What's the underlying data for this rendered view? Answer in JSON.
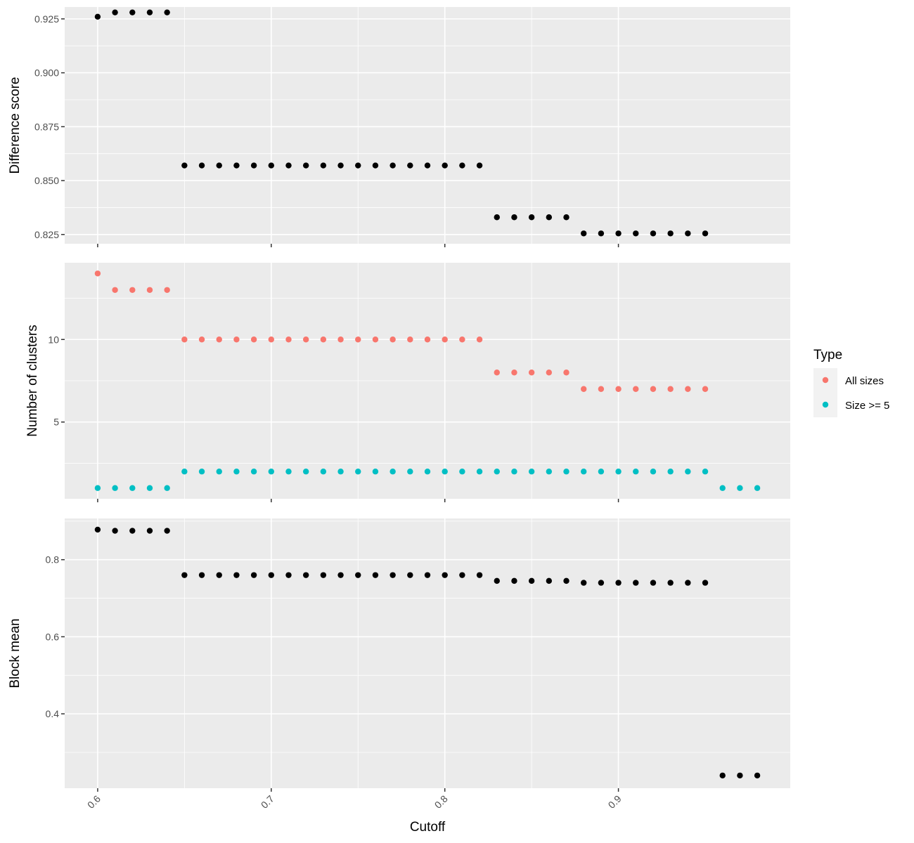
{
  "chart_data": {
    "type": "scatter",
    "xlabel": "Cutoff",
    "x_ticks": [
      0.6,
      0.7,
      0.8,
      0.9
    ],
    "xlim": [
      0.581,
      0.999
    ],
    "x": [
      0.6,
      0.61,
      0.62,
      0.63,
      0.64,
      0.65,
      0.66,
      0.67,
      0.68,
      0.69,
      0.7,
      0.71,
      0.72,
      0.73,
      0.74,
      0.75,
      0.76,
      0.77,
      0.78,
      0.79,
      0.8,
      0.81,
      0.82,
      0.83,
      0.84,
      0.85,
      0.86,
      0.87,
      0.88,
      0.89,
      0.9,
      0.91,
      0.92,
      0.93,
      0.94,
      0.95,
      0.96,
      0.97,
      0.98
    ],
    "grid": true,
    "legend": {
      "title": "Type",
      "position": "right",
      "entries": [
        {
          "label": "All sizes",
          "color": "#F8766D"
        },
        {
          "label": "Size >= 5",
          "color": "#00BFC4"
        }
      ]
    },
    "panels": [
      {
        "ylabel": "Difference score",
        "ylim": [
          0.8207,
          0.9305
        ],
        "y_ticks": [
          0.825,
          0.85,
          0.875,
          0.9,
          0.925
        ],
        "y_tick_labels": [
          "0.825",
          "0.850",
          "0.875",
          "0.900",
          "0.925"
        ],
        "series": [
          {
            "color": "#000000",
            "values": [
              0.926,
              0.928,
              0.928,
              0.928,
              0.928,
              0.857,
              0.857,
              0.857,
              0.857,
              0.857,
              0.857,
              0.857,
              0.857,
              0.857,
              0.857,
              0.857,
              0.857,
              0.857,
              0.857,
              0.857,
              0.857,
              0.857,
              0.857,
              0.833,
              0.833,
              0.833,
              0.833,
              0.833,
              0.8255,
              0.8255,
              0.8255,
              0.8255,
              0.8255,
              0.8255,
              0.8255,
              0.8255,
              null,
              null,
              null
            ]
          }
        ]
      },
      {
        "ylabel": "Number of clusters",
        "ylim": [
          0.35,
          14.65
        ],
        "y_ticks": [
          5,
          10
        ],
        "y_tick_labels": [
          "5",
          "10"
        ],
        "series": [
          {
            "name": "All sizes",
            "color": "#F8766D",
            "values": [
              14,
              13,
              13,
              13,
              13,
              10,
              10,
              10,
              10,
              10,
              10,
              10,
              10,
              10,
              10,
              10,
              10,
              10,
              10,
              10,
              10,
              10,
              10,
              8,
              8,
              8,
              8,
              8,
              7,
              7,
              7,
              7,
              7,
              7,
              7,
              7,
              null,
              null,
              null
            ]
          },
          {
            "name": "Size >= 5",
            "color": "#00BFC4",
            "values": [
              1,
              1,
              1,
              1,
              1,
              2,
              2,
              2,
              2,
              2,
              2,
              2,
              2,
              2,
              2,
              2,
              2,
              2,
              2,
              2,
              2,
              2,
              2,
              2,
              2,
              2,
              2,
              2,
              2,
              2,
              2,
              2,
              2,
              2,
              2,
              2,
              1,
              1,
              1
            ]
          }
        ]
      },
      {
        "ylabel": "Block mean",
        "ylim": [
          0.207,
          0.907
        ],
        "y_ticks": [
          0.4,
          0.6,
          0.8
        ],
        "y_tick_labels": [
          "0.4",
          "0.6",
          "0.8"
        ],
        "series": [
          {
            "color": "#000000",
            "values": [
              0.878,
              0.875,
              0.875,
              0.875,
              0.875,
              0.76,
              0.76,
              0.76,
              0.76,
              0.76,
              0.76,
              0.76,
              0.76,
              0.76,
              0.76,
              0.76,
              0.76,
              0.76,
              0.76,
              0.76,
              0.76,
              0.76,
              0.76,
              0.745,
              0.745,
              0.745,
              0.745,
              0.745,
              0.74,
              0.74,
              0.74,
              0.74,
              0.74,
              0.74,
              0.74,
              0.74,
              0.24,
              0.24,
              0.24
            ]
          }
        ]
      }
    ]
  }
}
